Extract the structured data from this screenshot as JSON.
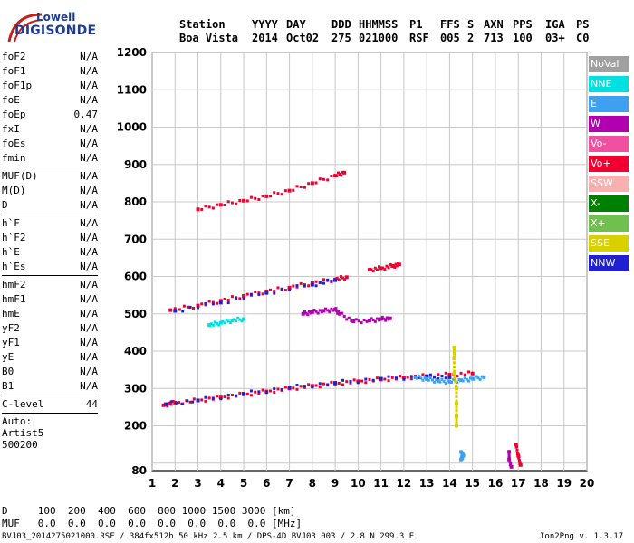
{
  "logo": {
    "top": "Lowell",
    "bottom": "DIGISONDE"
  },
  "header": {
    "cols": [
      {
        "label": "Station",
        "value": "Boa Vista"
      },
      {
        "label": "YYYY",
        "value": "2014"
      },
      {
        "label": "DAY",
        "value": "Oct02"
      },
      {
        "label": "DDD",
        "value": "275"
      },
      {
        "label": "HHMMSS",
        "value": "021000"
      },
      {
        "label": "P1",
        "value": "RSF"
      },
      {
        "label": "FFS",
        "value": "005"
      },
      {
        "label": "S",
        "value": "2"
      },
      {
        "label": "AXN",
        "value": "713"
      },
      {
        "label": "PPS",
        "value": "100"
      },
      {
        "label": "IGA",
        "value": "03+"
      },
      {
        "label": "PS",
        "value": "C0"
      }
    ]
  },
  "params": {
    "group1": [
      {
        "name": "foF2",
        "value": "N/A"
      },
      {
        "name": "foF1",
        "value": "N/A"
      },
      {
        "name": "foF1p",
        "value": "N/A"
      },
      {
        "name": "foE",
        "value": "N/A"
      },
      {
        "name": "foEp",
        "value": "0.47"
      },
      {
        "name": "fxI",
        "value": "N/A"
      },
      {
        "name": "foEs",
        "value": "N/A"
      },
      {
        "name": "fmin",
        "value": "N/A"
      }
    ],
    "group2": [
      {
        "name": "MUF(D)",
        "value": "N/A"
      },
      {
        "name": "M(D)",
        "value": "N/A"
      },
      {
        "name": "D",
        "value": "N/A"
      }
    ],
    "group3": [
      {
        "name": "h`F",
        "value": "N/A"
      },
      {
        "name": "h`F2",
        "value": "N/A"
      },
      {
        "name": "h`E",
        "value": "N/A"
      },
      {
        "name": "h`Es",
        "value": "N/A"
      }
    ],
    "group4": [
      {
        "name": "hmF2",
        "value": "N/A"
      },
      {
        "name": "hmF1",
        "value": "N/A"
      },
      {
        "name": "hmE",
        "value": "N/A"
      },
      {
        "name": "yF2",
        "value": "N/A"
      },
      {
        "name": "yF1",
        "value": "N/A"
      },
      {
        "name": "yE",
        "value": "N/A"
      },
      {
        "name": "B0",
        "value": "N/A"
      },
      {
        "name": "B1",
        "value": "N/A"
      }
    ],
    "group5": [
      {
        "name": "C-level",
        "value": "44"
      }
    ],
    "auto_lines": [
      "Auto:",
      "Artist5",
      "500200"
    ]
  },
  "footer": {
    "d_row": "D     100  200  400  600  800 1000 1500 3000 [km]",
    "muf_row": "MUF   0.0  0.0  0.0  0.0  0.0  0.0  0.0  0.0 [MHz]",
    "file_line": "BVJ03_2014275021000.RSF / 384fx512h 50 kHz 2.5 km / DPS-4D BVJ03 003 / 2.8 N 299.3 E",
    "version": "Ion2Png v. 1.3.17"
  },
  "legend": [
    {
      "label": "NoVal",
      "color": "#a0a0a0"
    },
    {
      "label": "NNE",
      "color": "#00e0e0"
    },
    {
      "label": "E",
      "color": "#3ea0f0"
    },
    {
      "label": "W",
      "color": "#b000b0"
    },
    {
      "label": "Vo-",
      "color": "#f050a0"
    },
    {
      "label": "Vo+",
      "color": "#f00030"
    },
    {
      "label": "SSW",
      "color": "#f8b0b0"
    },
    {
      "label": "X-",
      "color": "#008000"
    },
    {
      "label": "X+",
      "color": "#70c050"
    },
    {
      "label": "SSE",
      "color": "#d8d000"
    },
    {
      "label": "NNW",
      "color": "#2020d0"
    }
  ],
  "chart_data": {
    "type": "scatter",
    "xlim": [
      1,
      20
    ],
    "ylim": [
      80,
      1200
    ],
    "x_ticks": [
      1,
      2,
      3,
      4,
      5,
      6,
      7,
      8,
      9,
      10,
      11,
      12,
      13,
      14,
      15,
      16,
      17,
      18,
      19,
      20
    ],
    "y_ticks": [
      100,
      200,
      300,
      400,
      500,
      600,
      700,
      800,
      900,
      1000,
      1100,
      1200
    ],
    "y_tick_labels": [
      "",
      "200",
      "300",
      "400",
      "500",
      "600",
      "700",
      "800",
      "900",
      "1000",
      "1100",
      "1200"
    ],
    "y_min_label": "80",
    "grid": true,
    "traces": [
      {
        "name": "F trace",
        "color": "#f00030",
        "points": [
          [
            1.5,
            255
          ],
          [
            2,
            262
          ],
          [
            3,
            268
          ],
          [
            4,
            276
          ],
          [
            5,
            284
          ],
          [
            6,
            292
          ],
          [
            7,
            300
          ],
          [
            8,
            307
          ],
          [
            9,
            313
          ],
          [
            10,
            319
          ],
          [
            11,
            324
          ],
          [
            12,
            329
          ],
          [
            13,
            333
          ],
          [
            14,
            337
          ],
          [
            15,
            340
          ]
        ]
      },
      {
        "name": "F trace",
        "color": "#2020d0",
        "points": [
          [
            1.6,
            258
          ],
          [
            3,
            268
          ],
          [
            5,
            286
          ],
          [
            7,
            302
          ],
          [
            9,
            315
          ],
          [
            11,
            326
          ],
          [
            13,
            332
          ],
          [
            14,
            330
          ]
        ]
      },
      {
        "name": "F trace",
        "color": "#3ea0f0",
        "points": [
          [
            12.5,
            330
          ],
          [
            13,
            325
          ],
          [
            13.5,
            320
          ],
          [
            14,
            318
          ],
          [
            14.5,
            322
          ],
          [
            15,
            326
          ],
          [
            15.5,
            330
          ]
        ]
      },
      {
        "name": "2F trace",
        "color": "#f00030",
        "points": [
          [
            1.8,
            510
          ],
          [
            3,
            522
          ],
          [
            4,
            535
          ],
          [
            5,
            548
          ],
          [
            6,
            560
          ],
          [
            7,
            570
          ],
          [
            8,
            582
          ],
          [
            9,
            592
          ],
          [
            9.5,
            598
          ]
        ]
      },
      {
        "name": "2F trace",
        "color": "#2020d0",
        "points": [
          [
            2,
            508
          ],
          [
            4,
            530
          ],
          [
            6,
            556
          ],
          [
            8,
            578
          ],
          [
            9,
            590
          ]
        ]
      },
      {
        "name": "2F trace",
        "color": "#f00030",
        "points": [
          [
            10.5,
            618
          ],
          [
            11,
            622
          ],
          [
            11.5,
            628
          ],
          [
            11.8,
            632
          ]
        ]
      },
      {
        "name": "W echoes",
        "color": "#b000b0",
        "points": [
          [
            7.6,
            500
          ],
          [
            8,
            505
          ],
          [
            8.5,
            508
          ],
          [
            9,
            512
          ],
          [
            9.2,
            500
          ],
          [
            9.8,
            480
          ],
          [
            10.5,
            482
          ],
          [
            11,
            486
          ],
          [
            11.4,
            488
          ]
        ]
      },
      {
        "name": "3F trace",
        "color": "#f00030",
        "points": [
          [
            3,
            780
          ],
          [
            4,
            792
          ],
          [
            5,
            803
          ],
          [
            6,
            815
          ],
          [
            7,
            830
          ],
          [
            8,
            850
          ],
          [
            9,
            870
          ],
          [
            9.4,
            878
          ]
        ]
      },
      {
        "name": "NNE echoes",
        "color": "#00e0e0",
        "points": [
          [
            3.5,
            470
          ],
          [
            4,
            476
          ],
          [
            4.5,
            482
          ],
          [
            5,
            486
          ]
        ]
      },
      {
        "name": "SSE column",
        "color": "#d8d000",
        "points": [
          [
            14.2,
            410
          ],
          [
            14.2,
            380
          ],
          [
            14.2,
            340
          ],
          [
            14.3,
            300
          ],
          [
            14.3,
            260
          ],
          [
            14.3,
            225
          ],
          [
            14.3,
            200
          ]
        ]
      },
      {
        "name": "E column",
        "color": "#3ea0f0",
        "points": [
          [
            14.5,
            130
          ],
          [
            14.6,
            120
          ],
          [
            14.5,
            110
          ]
        ]
      },
      {
        "name": "W column",
        "color": "#b000b0",
        "points": [
          [
            16.6,
            130
          ],
          [
            16.6,
            110
          ],
          [
            16.7,
            90
          ]
        ]
      },
      {
        "name": "Vo+ column",
        "color": "#f00030",
        "points": [
          [
            16.9,
            150
          ],
          [
            17,
            120
          ],
          [
            17.1,
            95
          ]
        ]
      }
    ]
  }
}
